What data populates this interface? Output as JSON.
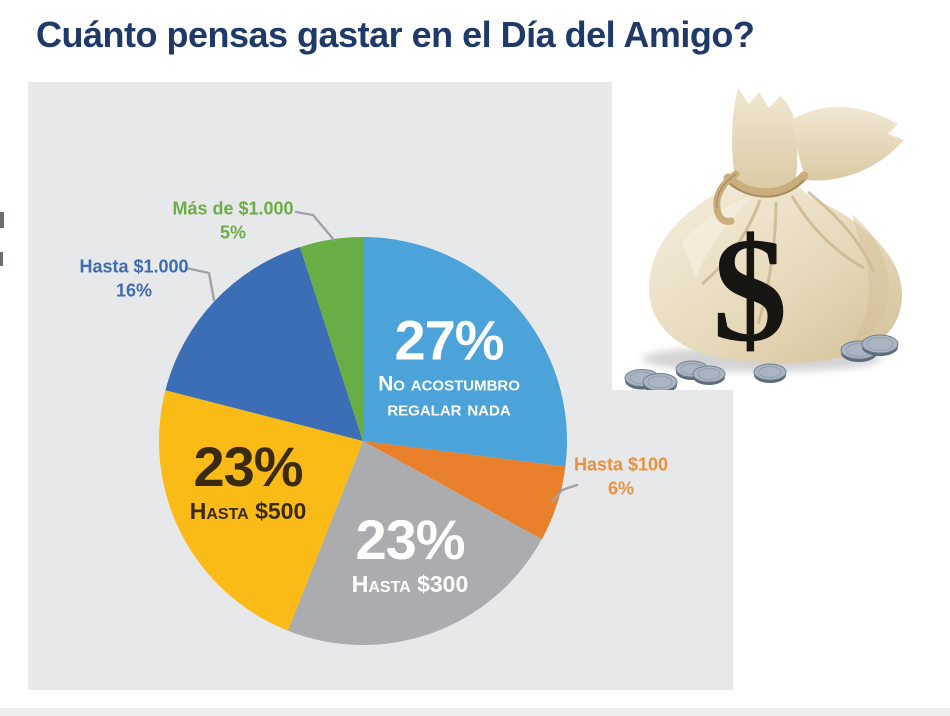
{
  "page": {
    "title": "Cuánto pensas gastar en el Día del Amigo?",
    "title_color": "#1F3968",
    "background": "#FFFFFF",
    "panel_background": "#E7E8E9"
  },
  "chart_data": {
    "type": "pie",
    "title": "Cuánto pensas gastar en el Día del Amigo?",
    "direction": "clockwise",
    "start_angle_deg": 0,
    "total": 100,
    "legend": "none",
    "slices": [
      {
        "label": "No acostumbro regalar nada",
        "pct_text": "27%",
        "value": 27,
        "color": "#4CA3DA",
        "text_color": "#FFFFFF",
        "label_placement": "inside"
      },
      {
        "label": "Hasta $100",
        "pct_text": "6%",
        "value": 6,
        "color": "#E8802B",
        "text_color": "#E8913F",
        "label_placement": "outside-right"
      },
      {
        "label": "Hasta $300",
        "pct_text": "23%",
        "value": 23,
        "color": "#ABACB0",
        "text_color": "#FFFFFF",
        "label_placement": "inside"
      },
      {
        "label": "Hasta $500",
        "pct_text": "23%",
        "value": 23,
        "color": "#FBBB17",
        "text_color": "#3B2B0D",
        "label_placement": "inside"
      },
      {
        "label": "Hasta $1.000",
        "pct_text": "16%",
        "value": 16,
        "color": "#3B6EB5",
        "text_color": "#3D6CB0",
        "label_placement": "outside-left"
      },
      {
        "label": "Más de $1.000",
        "pct_text": "5%",
        "value": 5,
        "color": "#69AE44",
        "text_color": "#6BAE44",
        "label_placement": "outside-top"
      }
    ]
  },
  "money_bag": {
    "dollar_sign": "$",
    "bag_color": "#E7DABB",
    "coin_color": "#A9B5C1",
    "coins_count": 7
  }
}
